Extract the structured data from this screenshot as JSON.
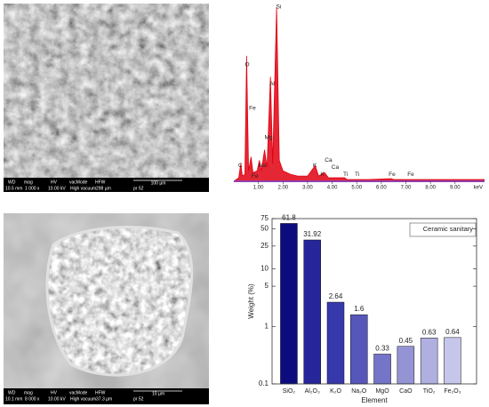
{
  "images": [
    {
      "bar_top": [
        "WD",
        "mag",
        "HV",
        "vacMode",
        "HFW"
      ],
      "scale": "100 µm",
      "bar_bottom": [
        "10.5 mm",
        "1 000 x",
        "10.00 kV",
        "High vacuum",
        "298 µm",
        "pr 52"
      ]
    },
    {
      "bar_top": [
        "WD",
        "mag",
        "HV",
        "vacMode",
        "HFW"
      ],
      "scale": "10 µm",
      "bar_bottom": [
        "10.1 mm",
        "8 000 x",
        "10.00 kV",
        "High vacuum",
        "37.3 µm",
        "pr 52"
      ]
    }
  ],
  "chart_data": [
    {
      "type": "area",
      "color": "#e00010",
      "axis_color": "#9040b0",
      "x": [
        0.0,
        0.2,
        0.28,
        0.35,
        0.45,
        0.52,
        0.6,
        0.7,
        0.78,
        0.95,
        1.04,
        1.12,
        1.25,
        1.35,
        1.49,
        1.58,
        1.74,
        1.85,
        2.0,
        2.3,
        2.6,
        3.0,
        3.31,
        3.45,
        3.69,
        3.85,
        4.0,
        4.51,
        4.6,
        5.5,
        6.4,
        6.5,
        7.0,
        8.0,
        9.0,
        10.2
      ],
      "values": [
        0,
        2,
        10,
        3,
        4,
        72,
        6,
        14,
        5,
        6,
        12,
        6,
        18,
        8,
        60,
        10,
        100,
        12,
        6,
        4,
        3,
        3,
        9,
        3,
        5,
        2,
        2,
        2,
        1,
        1,
        1.5,
        1,
        1,
        1,
        1,
        1
      ],
      "xlim": [
        0,
        10.2
      ],
      "ylim": [
        0,
        100
      ],
      "xticks": [
        {
          "value": 1,
          "label": "1.00"
        },
        {
          "value": 2,
          "label": "2.00"
        },
        {
          "value": 3,
          "label": "3.00"
        },
        {
          "value": 4,
          "label": "4.00"
        },
        {
          "value": 5,
          "label": "5.00"
        },
        {
          "value": 6,
          "label": "6.00"
        },
        {
          "value": 7,
          "label": "7.00"
        },
        {
          "value": 8,
          "label": "8.00"
        },
        {
          "value": 9,
          "label": "9.00"
        }
      ],
      "x_label": "keV",
      "annotations": [
        {
          "text": "Si",
          "x": 1.72,
          "y": 100
        },
        {
          "text": "O",
          "x": 0.45,
          "y": 67
        },
        {
          "text": "Al",
          "x": 1.45,
          "y": 56
        },
        {
          "text": "Fe",
          "x": 0.62,
          "y": 42
        },
        {
          "text": "Mg",
          "x": 1.25,
          "y": 25
        },
        {
          "text": "Na",
          "x": 1.0,
          "y": 9
        },
        {
          "text": "C",
          "x": 0.18,
          "y": 9
        },
        {
          "text": "Fe",
          "x": 0.72,
          "y": 3
        },
        {
          "text": "Ca",
          "x": 3.7,
          "y": 12
        },
        {
          "text": "K",
          "x": 3.22,
          "y": 9
        },
        {
          "text": "K",
          "x": 3.52,
          "y": 4
        },
        {
          "text": "Ca",
          "x": 3.97,
          "y": 8
        },
        {
          "text": "Ti",
          "x": 4.45,
          "y": 4
        },
        {
          "text": "Ti",
          "x": 4.92,
          "y": 4
        },
        {
          "text": "Fe",
          "x": 6.3,
          "y": 4
        },
        {
          "text": "Fe",
          "x": 7.06,
          "y": 4
        }
      ]
    },
    {
      "type": "bar",
      "log_scale": true,
      "categories": [
        "SiO₂",
        "Al₂O₃",
        "K₂O",
        "Na₂O",
        "MgO",
        "CaO",
        "TiO₂",
        "Fe₂O₃"
      ],
      "values": [
        61.8,
        31.92,
        2.64,
        1.6,
        0.33,
        0.45,
        0.63,
        0.64
      ],
      "colors": [
        "#0c0c7e",
        "#26269a",
        "#3838ad",
        "#5656bb",
        "#7474c8",
        "#9494d4",
        "#b0b0e0",
        "#c6c6ea"
      ],
      "ylim": [
        0.1,
        75
      ],
      "yticks": [
        0.1,
        1,
        5,
        10,
        25,
        50,
        75
      ],
      "x_label": "Element",
      "y_label": "Weight (%)",
      "legend_text": "Ceramic sanitary",
      "legend_position": "upper right"
    }
  ]
}
